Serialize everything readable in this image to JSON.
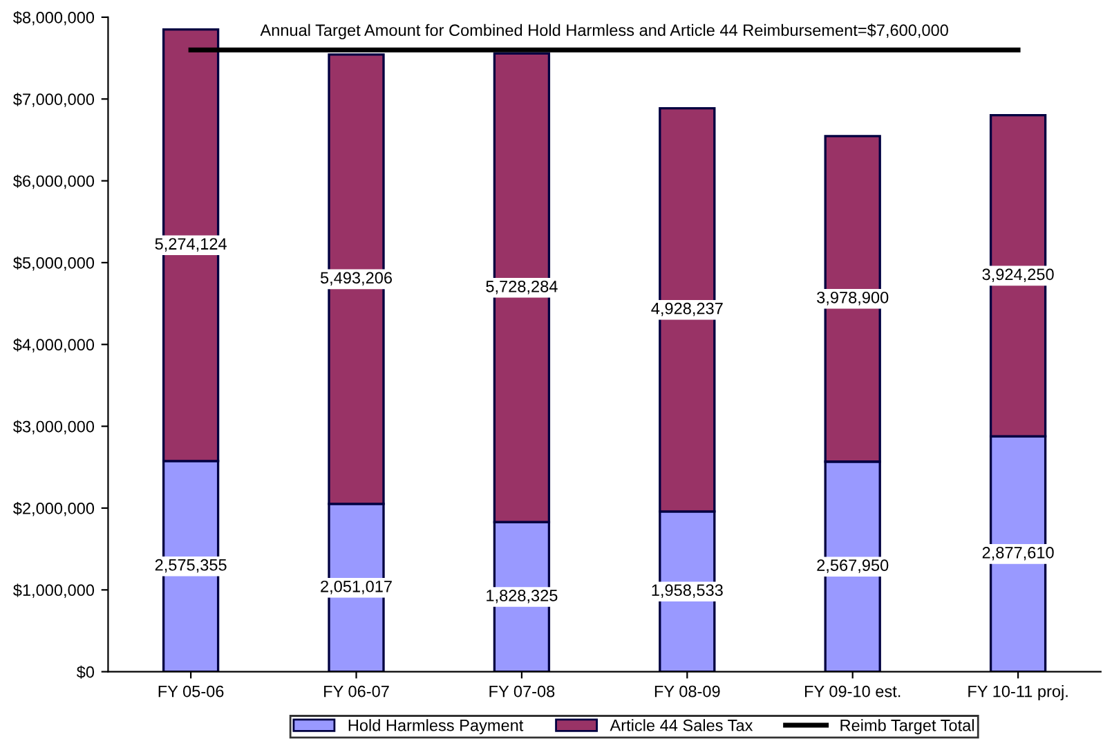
{
  "chart_data": {
    "type": "bar",
    "stacked": true,
    "categories": [
      "FY 05-06",
      "FY 06-07",
      "FY 07-08",
      "FY 08-09",
      "FY 09-10 est.",
      "FY 10-11 proj."
    ],
    "series": [
      {
        "name": "Hold Harmless Payment",
        "color": "#9999ff",
        "values": [
          2575355,
          2051017,
          1828325,
          1958533,
          2567950,
          2877610
        ],
        "value_labels": [
          "2,575,355",
          "2,051,017",
          "1,828,325",
          "1,958,533",
          "2,567,950",
          "2,877,610"
        ]
      },
      {
        "name": "Article 44 Sales Tax",
        "color": "#993366",
        "values": [
          5274124,
          5493206,
          5728284,
          4928237,
          3978900,
          3924250
        ],
        "value_labels": [
          "5,274,124",
          "5,493,206",
          "5,728,284",
          "4,928,237",
          "3,978,900",
          "3,924,250"
        ]
      },
      {
        "name": "Reimb Target Total",
        "type": "line",
        "color": "#000000",
        "values": [
          7600000,
          7600000,
          7600000,
          7600000,
          7600000,
          7600000
        ]
      }
    ],
    "annotations": [
      "Annual Target Amount for Combined Hold Harmless and Article 44 Reimbursement=$7,600,000"
    ],
    "ylim": [
      0,
      8000000
    ],
    "yticks": [
      {
        "value": 0,
        "label": "$0"
      },
      {
        "value": 1000000,
        "label": "$1,000,000"
      },
      {
        "value": 2000000,
        "label": "$2,000,000"
      },
      {
        "value": 3000000,
        "label": "$3,000,000"
      },
      {
        "value": 4000000,
        "label": "$4,000,000"
      },
      {
        "value": 5000000,
        "label": "$5,000,000"
      },
      {
        "value": 6000000,
        "label": "$6,000,000"
      },
      {
        "value": 7000000,
        "label": "$7,000,000"
      },
      {
        "value": 8000000,
        "label": "$8,000,000"
      }
    ],
    "grid": false,
    "legend": "bottom"
  }
}
